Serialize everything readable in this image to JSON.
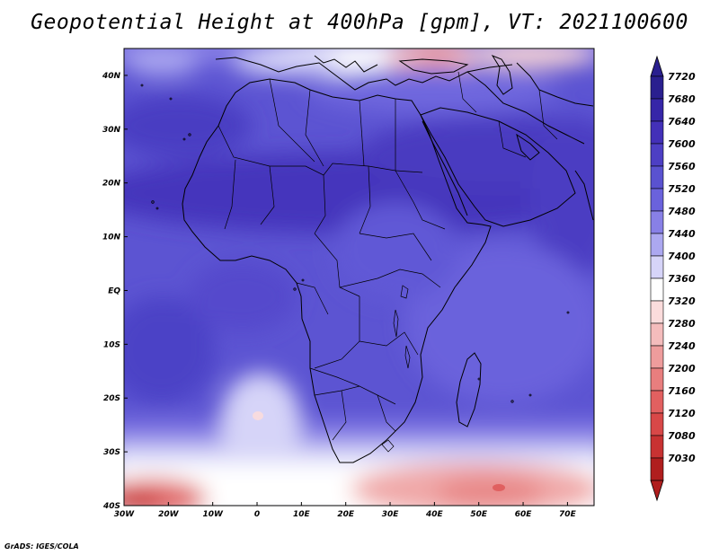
{
  "title": "Geopotential Height at 400hPa [gpm], VT: 2021100600",
  "credit": "GrADS: IGES/COLA",
  "map": {
    "lon_range": [
      -30,
      76
    ],
    "lat_range": [
      -40,
      45
    ],
    "lon_ticks": [
      {
        "value": -30,
        "label": "30W"
      },
      {
        "value": -20,
        "label": "20W"
      },
      {
        "value": -10,
        "label": "10W"
      },
      {
        "value": 0,
        "label": "0"
      },
      {
        "value": 10,
        "label": "10E"
      },
      {
        "value": 20,
        "label": "20E"
      },
      {
        "value": 30,
        "label": "30E"
      },
      {
        "value": 40,
        "label": "40E"
      },
      {
        "value": 50,
        "label": "50E"
      },
      {
        "value": 60,
        "label": "60E"
      },
      {
        "value": 70,
        "label": "70E"
      }
    ],
    "lat_ticks": [
      {
        "value": 40,
        "label": "40N"
      },
      {
        "value": 30,
        "label": "30N"
      },
      {
        "value": 20,
        "label": "20N"
      },
      {
        "value": 10,
        "label": "10N"
      },
      {
        "value": 0,
        "label": "EQ"
      },
      {
        "value": -10,
        "label": "10S"
      },
      {
        "value": -20,
        "label": "20S"
      },
      {
        "value": -30,
        "label": "30S"
      },
      {
        "value": -40,
        "label": "40S"
      }
    ]
  },
  "colorbar": {
    "levels": [
      "7720",
      "7680",
      "7640",
      "7600",
      "7560",
      "7520",
      "7480",
      "7440",
      "7400",
      "7360",
      "7320",
      "7280",
      "7240",
      "7200",
      "7160",
      "7120",
      "7080",
      "7030"
    ],
    "colors": [
      "#2a1f8f",
      "#3626a8",
      "#4330b8",
      "#4d3fc4",
      "#5a52d0",
      "#6a62dc",
      "#8880e6",
      "#aca8f0",
      "#d6d4f8",
      "#ffffff",
      "#fbdcdc",
      "#f4bcbc",
      "#ee9c9c",
      "#e87e7e",
      "#e26060",
      "#d84848",
      "#c83232",
      "#b01e1e"
    ]
  }
}
